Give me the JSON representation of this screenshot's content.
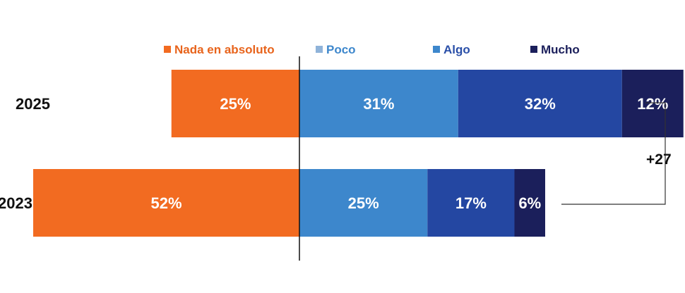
{
  "chart_data": {
    "type": "bar",
    "orientation": "horizontal",
    "stacked": true,
    "diverging": true,
    "categories": [
      "2025",
      "2023"
    ],
    "series": [
      {
        "name": "Nada en absoluto",
        "color": "#f26b21",
        "values": [
          25,
          52
        ],
        "labels": [
          "25%",
          "52%"
        ]
      },
      {
        "name": "Poco",
        "color": "#3d87cc",
        "values": [
          31,
          25
        ],
        "labels": [
          "31%",
          "25%"
        ]
      },
      {
        "name": "Algo",
        "color": "#2447a2",
        "values": [
          32,
          17
        ],
        "labels": [
          "32%",
          "17%"
        ]
      },
      {
        "name": "Mucho",
        "color": "#1b1f5b",
        "values": [
          12,
          6
        ],
        "labels": [
          "12%",
          "6%"
        ]
      }
    ],
    "legend_text_colors": [
      "#e8641c",
      "#3d87cc",
      "#2a4fa8",
      "#1b1f5b"
    ],
    "legend_marker_colors": [
      "#f26b21",
      "#8fb3d9",
      "#3d87cc",
      "#1b1f5b"
    ],
    "legend_position": "top",
    "annotation": "+27"
  }
}
